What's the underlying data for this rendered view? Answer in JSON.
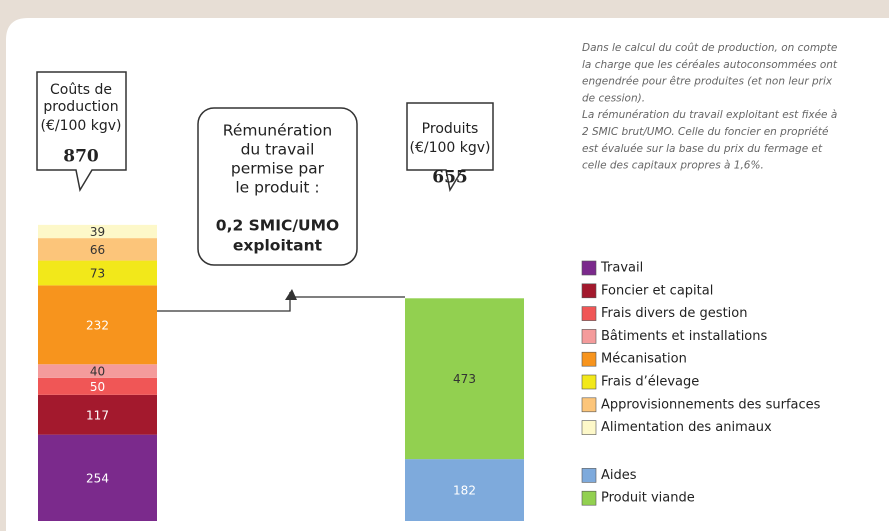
{
  "chart_data": {
    "type": "stacked_bar",
    "bars": [
      {
        "label_lines": [
          "Coûts de",
          "production",
          "(€/100 kgv)"
        ],
        "total": 870,
        "segments": [
          {
            "name": "Travail",
            "color": "#7b2a8c",
            "label_color": "#ffffff",
            "value": 254
          },
          {
            "name": "Foncier et capital",
            "color": "#a3192d",
            "label_color": "#ffffff",
            "value": 117
          },
          {
            "name": "Frais divers de gestion",
            "color": "#f05656",
            "label_color": "#ffffff",
            "value": 50
          },
          {
            "name": "Bâtiments et installations",
            "color": "#f49b9b",
            "label_color": "#333333",
            "value": 40
          },
          {
            "name": "Mécanisation",
            "color": "#f7941d",
            "label_color": "#ffffff",
            "value": 232
          },
          {
            "name": "Frais d’élevage",
            "color": "#f2e81a",
            "label_color": "#333333",
            "value": 73
          },
          {
            "name": "Approvisionnements des surfaces",
            "color": "#fcc57a",
            "label_color": "#333333",
            "value": 66
          },
          {
            "name": "Alimentation des animaux",
            "color": "#fdf8c9",
            "label_color": "#333333",
            "value": 39
          }
        ]
      },
      {
        "label_lines": [
          "Produits",
          "(€/100 kgv)"
        ],
        "total": 655,
        "segments": [
          {
            "name": "Aides",
            "color": "#7eaadc",
            "label_color": "#ffffff",
            "value": 182
          },
          {
            "name": "Produit viande",
            "color": "#92d050",
            "label_color": "#333333",
            "value": 473
          }
        ]
      }
    ],
    "center_lines": [
      "Rémunération",
      "du travail",
      "permise par",
      "le produit :"
    ],
    "center_bold_lines": [
      "0,2 SMIC/UMO",
      "exploitant"
    ],
    "note_lines": [
      "Dans le calcul du coût de production, on compte",
      "la charge que les céréales autoconsommées ont",
      "engendrée pour être produites (et non leur prix",
      "de cession).",
      "La rémunération du travail exploitant est fixée à",
      "2 SMIC brut/UMO. Celle du foncier en propriété",
      "est évaluée sur la base du prix du fermage et",
      "celle des capitaux propres à 1,6%."
    ]
  }
}
